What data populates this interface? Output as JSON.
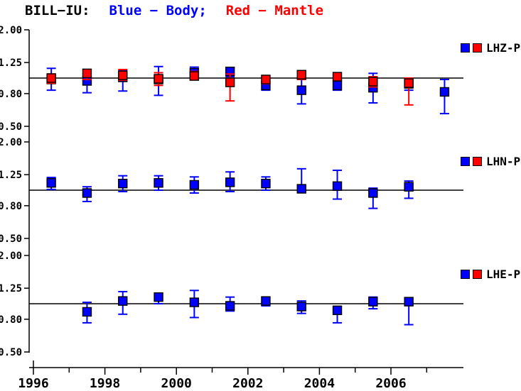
{
  "title": {
    "station": "BILL−IU:",
    "blue_part": "Blue − Body;",
    "red_part": "Red − Mantle"
  },
  "colors": {
    "body": "#0000ff",
    "mantle": "#ff0000",
    "axis": "#000000",
    "background": "#ffffff"
  },
  "xaxis": {
    "range": [
      1996,
      2008.03
    ],
    "major_ticks": [
      {
        "value": 1996,
        "label": "1996"
      },
      {
        "value": 1998,
        "label": "1998"
      },
      {
        "value": 2000,
        "label": "2000"
      },
      {
        "value": 2002,
        "label": "2002"
      },
      {
        "value": 2004,
        "label": "2004"
      },
      {
        "value": 2006,
        "label": "2006"
      }
    ],
    "minor_ticks": [
      1997,
      1999,
      2001,
      2003,
      2005,
      2007
    ]
  },
  "chart_data": [
    {
      "type": "scatter",
      "label": "LHZ-P",
      "yscale": "log",
      "ylim": [
        0.5,
        2.0
      ],
      "refline": 1.0,
      "yticks": [
        {
          "value": 2.0,
          "label": "2.00"
        },
        {
          "value": 1.25,
          "label": "1.25"
        },
        {
          "value": 0.8,
          "label": "0.80"
        },
        {
          "value": 0.5,
          "label": "0.50"
        }
      ],
      "series": [
        {
          "name": "Body",
          "color_key": "body",
          "points": [
            {
              "x": 1996.5,
              "y": 0.98,
              "lo": 0.84,
              "hi": 1.15
            },
            {
              "x": 1997.5,
              "y": 0.96,
              "lo": 0.81,
              "hi": 1.05
            },
            {
              "x": 1998.5,
              "y": 1.01,
              "lo": 0.83,
              "hi": 1.11
            },
            {
              "x": 1999.5,
              "y": 0.98,
              "lo": 0.78,
              "hi": 1.18
            },
            {
              "x": 2000.5,
              "y": 1.08,
              "lo": 1.0,
              "hi": 1.17
            },
            {
              "x": 2001.5,
              "y": 1.1,
              "lo": 1.02,
              "hi": 1.15
            },
            {
              "x": 2002.5,
              "y": 0.9,
              "lo": 0.84,
              "hi": 0.96
            },
            {
              "x": 2003.5,
              "y": 0.84,
              "lo": 0.69,
              "hi": 0.98
            },
            {
              "x": 2004.5,
              "y": 0.9,
              "lo": 0.84,
              "hi": 0.96
            },
            {
              "x": 2005.5,
              "y": 0.87,
              "lo": 0.7,
              "hi": 1.07
            },
            {
              "x": 2006.5,
              "y": 0.92,
              "lo": 0.84,
              "hi": 0.97
            },
            {
              "x": 2007.5,
              "y": 0.82,
              "lo": 0.6,
              "hi": 0.98
            }
          ]
        },
        {
          "name": "Mantle",
          "color_key": "mantle",
          "points": [
            {
              "x": 1996.5,
              "y": 1.0,
              "lo": 0.93,
              "hi": 1.06
            },
            {
              "x": 1997.5,
              "y": 1.07,
              "lo": 0.98,
              "hi": 1.13
            },
            {
              "x": 1998.5,
              "y": 1.04,
              "lo": 0.97,
              "hi": 1.13
            },
            {
              "x": 1999.5,
              "y": 0.99,
              "lo": 0.9,
              "hi": 1.08
            },
            {
              "x": 2000.5,
              "y": 1.03,
              "lo": 0.98,
              "hi": 1.1
            },
            {
              "x": 2001.5,
              "y": 0.94,
              "lo": 0.72,
              "hi": 1.06
            },
            {
              "x": 2002.5,
              "y": 0.98,
              "lo": 0.92,
              "hi": 1.03
            },
            {
              "x": 2003.5,
              "y": 1.05,
              "lo": 0.98,
              "hi": 1.1
            },
            {
              "x": 2004.5,
              "y": 1.02,
              "lo": 0.97,
              "hi": 1.07
            },
            {
              "x": 2005.5,
              "y": 0.95,
              "lo": 0.88,
              "hi": 1.02
            },
            {
              "x": 2006.5,
              "y": 0.93,
              "lo": 0.68,
              "hi": 1.0
            }
          ]
        }
      ]
    },
    {
      "type": "scatter",
      "label": "LHN-P",
      "yscale": "log",
      "ylim": [
        0.5,
        2.0
      ],
      "refline": 1.0,
      "yticks": [
        {
          "value": 2.0,
          "label": "2.00"
        },
        {
          "value": 1.25,
          "label": "1.25"
        },
        {
          "value": 0.8,
          "label": "0.80"
        },
        {
          "value": 0.5,
          "label": "0.50"
        }
      ],
      "series": [
        {
          "name": "Body",
          "color_key": "body",
          "points": [
            {
              "x": 1996.5,
              "y": 1.11,
              "lo": 1.01,
              "hi": 1.2
            },
            {
              "x": 1997.5,
              "y": 0.96,
              "lo": 0.85,
              "hi": 1.05
            },
            {
              "x": 1998.5,
              "y": 1.1,
              "lo": 0.98,
              "hi": 1.23
            },
            {
              "x": 1999.5,
              "y": 1.11,
              "lo": 1.0,
              "hi": 1.23
            },
            {
              "x": 2000.5,
              "y": 1.08,
              "lo": 0.96,
              "hi": 1.21
            },
            {
              "x": 2001.5,
              "y": 1.12,
              "lo": 0.98,
              "hi": 1.3
            },
            {
              "x": 2002.5,
              "y": 1.1,
              "lo": 1.0,
              "hi": 1.21
            },
            {
              "x": 2003.5,
              "y": 1.02,
              "lo": 0.98,
              "hi": 1.36
            },
            {
              "x": 2004.5,
              "y": 1.06,
              "lo": 0.88,
              "hi": 1.33
            },
            {
              "x": 2005.5,
              "y": 0.96,
              "lo": 0.77,
              "hi": 1.03
            },
            {
              "x": 2006.5,
              "y": 1.05,
              "lo": 0.89,
              "hi": 1.14
            }
          ]
        },
        {
          "name": "Mantle",
          "color_key": "mantle",
          "points": []
        }
      ]
    },
    {
      "type": "scatter",
      "label": "LHE-P",
      "yscale": "log",
      "ylim": [
        0.5,
        2.0
      ],
      "refline": 1.0,
      "yticks": [
        {
          "value": 2.0,
          "label": "2.00"
        },
        {
          "value": 1.25,
          "label": "1.25"
        },
        {
          "value": 0.8,
          "label": "0.80"
        },
        {
          "value": 0.5,
          "label": "0.50"
        }
      ],
      "series": [
        {
          "name": "Body",
          "color_key": "body",
          "points": [
            {
              "x": 1997.5,
              "y": 0.89,
              "lo": 0.76,
              "hi": 1.02
            },
            {
              "x": 1998.5,
              "y": 1.04,
              "lo": 0.86,
              "hi": 1.19
            },
            {
              "x": 1999.5,
              "y": 1.1,
              "lo": 1.0,
              "hi": 1.16
            },
            {
              "x": 2000.5,
              "y": 1.02,
              "lo": 0.82,
              "hi": 1.21
            },
            {
              "x": 2001.5,
              "y": 0.97,
              "lo": 0.9,
              "hi": 1.1
            },
            {
              "x": 2002.5,
              "y": 1.04,
              "lo": 0.97,
              "hi": 1.09
            },
            {
              "x": 2003.5,
              "y": 0.96,
              "lo": 0.87,
              "hi": 1.04
            },
            {
              "x": 2004.5,
              "y": 0.91,
              "lo": 0.76,
              "hi": 0.96
            },
            {
              "x": 2005.5,
              "y": 1.03,
              "lo": 0.93,
              "hi": 1.1
            },
            {
              "x": 2006.5,
              "y": 1.03,
              "lo": 0.74,
              "hi": 1.08
            }
          ]
        },
        {
          "name": "Mantle",
          "color_key": "mantle",
          "points": []
        }
      ]
    }
  ]
}
